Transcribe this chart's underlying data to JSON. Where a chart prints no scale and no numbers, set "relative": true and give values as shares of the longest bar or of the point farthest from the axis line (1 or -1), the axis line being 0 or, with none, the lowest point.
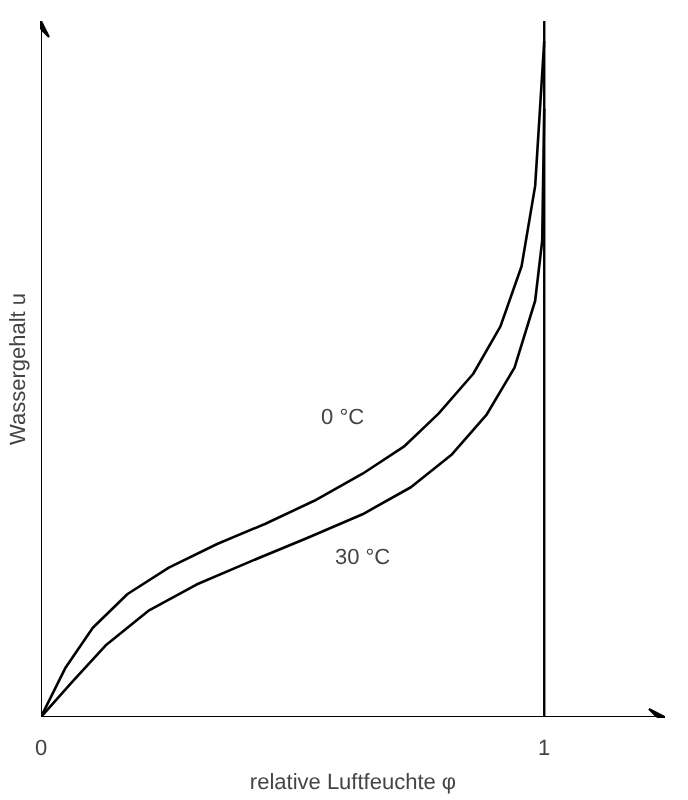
{
  "chart_data": {
    "type": "line",
    "relative": true,
    "xlabel": "relative Luftfeuchte φ",
    "ylabel": "Wassergehalt u",
    "xlim": [
      0,
      1.24
    ],
    "xticks": [
      0,
      1
    ],
    "grid": false,
    "marker": "none",
    "line_style": "solid",
    "series": [
      {
        "name": "0 °C",
        "color": "#000000",
        "x": [
          0,
          0.048,
          0.103,
          0.172,
          0.254,
          0.35,
          0.446,
          0.543,
          0.639,
          0.721,
          0.79,
          0.859,
          0.913,
          0.955,
          0.982,
          1
        ],
        "values": [
          0,
          0.072,
          0.132,
          0.182,
          0.221,
          0.256,
          0.286,
          0.32,
          0.36,
          0.4,
          0.449,
          0.508,
          0.578,
          0.667,
          0.786,
          1
        ]
      },
      {
        "name": "30 °C",
        "color": "#000000",
        "x": [
          0,
          0.062,
          0.13,
          0.213,
          0.309,
          0.419,
          0.529,
          0.639,
          0.735,
          0.817,
          0.886,
          0.941,
          0.982,
          0.996,
          1
        ],
        "values": [
          0,
          0.052,
          0.107,
          0.157,
          0.196,
          0.231,
          0.265,
          0.3,
          0.34,
          0.389,
          0.448,
          0.517,
          0.616,
          0.705,
          0.9
        ]
      }
    ],
    "ref_lines": [
      {
        "axis": "x",
        "value": 1,
        "color": "#000000"
      }
    ]
  }
}
